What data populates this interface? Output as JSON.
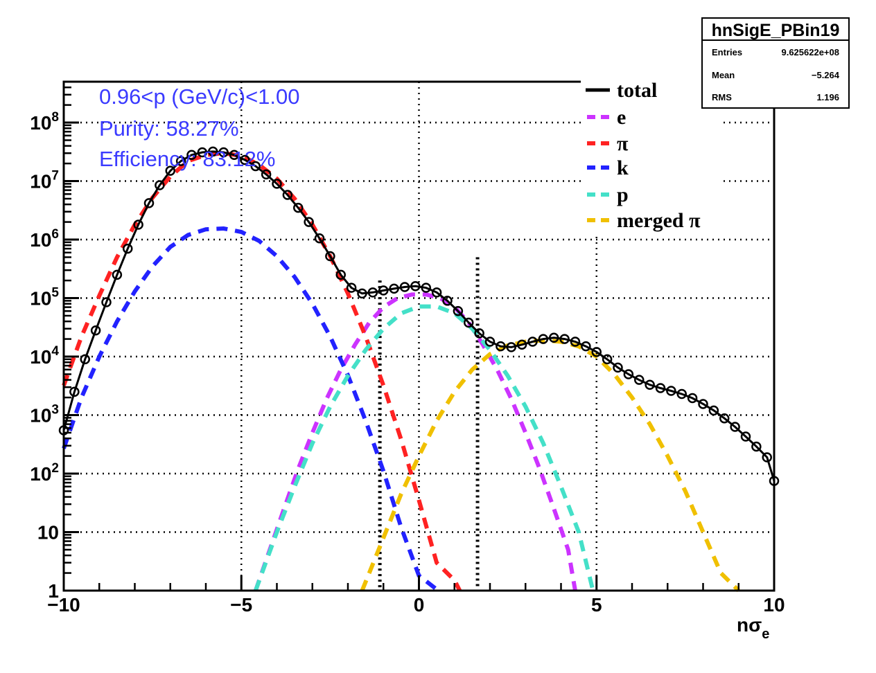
{
  "chart_data": {
    "type": "line",
    "xlabel": "nσ",
    "xlabel_subscript": "e",
    "xlim": [
      -10,
      10
    ],
    "ylim": [
      1,
      500000000
    ],
    "y_scale": "log",
    "grid": true,
    "x_ticks": [
      {
        "value": -10,
        "label": "−10"
      },
      {
        "value": -5,
        "label": "−5"
      },
      {
        "value": 0,
        "label": "0"
      },
      {
        "value": 5,
        "label": "5"
      },
      {
        "value": 10,
        "label": "10"
      }
    ],
    "y_ticks": [
      {
        "value": 1,
        "base": "1",
        "exp": ""
      },
      {
        "value": 10,
        "base": "10",
        "exp": ""
      },
      {
        "value": 100,
        "base": "10",
        "exp": "2"
      },
      {
        "value": 1000,
        "base": "10",
        "exp": "3"
      },
      {
        "value": 10000,
        "base": "10",
        "exp": "4"
      },
      {
        "value": 100000,
        "base": "10",
        "exp": "5"
      },
      {
        "value": 1000000,
        "base": "10",
        "exp": "6"
      },
      {
        "value": 10000000,
        "base": "10",
        "exp": "7"
      },
      {
        "value": 100000000,
        "base": "10",
        "exp": "8"
      }
    ],
    "cut_lines": [
      {
        "x": -1.1,
        "y_top": 200000
      },
      {
        "x": 1.65,
        "y_top": 500000
      }
    ],
    "annotations": [
      "0.96<p (GeV/c)<1.00",
      "Purity: 58.27%",
      "Efficiency: 83.12%"
    ],
    "legend_position": "top-right",
    "series": [
      {
        "name": "total",
        "style": "markers",
        "color": "#000000",
        "x": [
          -10.0,
          -9.7,
          -9.4,
          -9.1,
          -8.8,
          -8.5,
          -8.2,
          -7.9,
          -7.6,
          -7.3,
          -7.0,
          -6.7,
          -6.4,
          -6.1,
          -5.8,
          -5.5,
          -5.2,
          -4.9,
          -4.6,
          -4.3,
          -4.0,
          -3.7,
          -3.4,
          -3.1,
          -2.8,
          -2.5,
          -2.2,
          -1.9,
          -1.6,
          -1.3,
          -1.0,
          -0.7,
          -0.4,
          -0.1,
          0.2,
          0.5,
          0.8,
          1.1,
          1.4,
          1.7,
          2.0,
          2.3,
          2.6,
          2.9,
          3.2,
          3.5,
          3.8,
          4.1,
          4.4,
          4.7,
          5.0,
          5.3,
          5.6,
          5.9,
          6.2,
          6.5,
          6.8,
          7.1,
          7.4,
          7.7,
          8.0,
          8.3,
          8.6,
          8.9,
          9.2,
          9.5,
          9.8,
          10.0
        ],
        "y": [
          550,
          2500,
          9000,
          28000,
          85000,
          250000,
          700000,
          1800000,
          4200000,
          8500000,
          15000000,
          22000000,
          28000000,
          31000000,
          32000000,
          31000000,
          28000000,
          23000000,
          18000000,
          13000000,
          9000000,
          5800000,
          3500000,
          2000000,
          1050000,
          520000,
          250000,
          150000,
          120000,
          125000,
          135000,
          145000,
          155000,
          160000,
          150000,
          125000,
          90000,
          60000,
          38000,
          25000,
          18000,
          15000,
          14500,
          16000,
          18000,
          20000,
          21000,
          20000,
          18000,
          15000,
          12000,
          9000,
          6500,
          5000,
          4000,
          3300,
          2900,
          2600,
          2300,
          1950,
          1550,
          1200,
          880,
          630,
          430,
          290,
          190,
          75
        ]
      },
      {
        "name": "e",
        "style": "dashed",
        "color": "#cc33ff",
        "x": [
          -4.6,
          -4.2,
          -3.8,
          -3.4,
          -3.0,
          -2.6,
          -2.2,
          -1.8,
          -1.4,
          -1.0,
          -0.6,
          -0.2,
          0.2,
          0.6,
          1.0,
          1.4,
          1.8,
          2.2,
          2.6,
          3.0,
          3.4,
          3.8,
          4.2,
          4.4
        ],
        "y": [
          1,
          5,
          25,
          120,
          500,
          1900,
          6000,
          16000,
          38000,
          70000,
          100000,
          115000,
          115000,
          100000,
          70000,
          38000,
          16000,
          6000,
          1900,
          500,
          120,
          25,
          5,
          1
        ]
      },
      {
        "name": "π",
        "style": "dashed",
        "color": "#ff2222",
        "x": [
          -10.0,
          -9.5,
          -9.0,
          -8.5,
          -8.0,
          -7.5,
          -7.0,
          -6.5,
          -6.0,
          -5.5,
          -5.0,
          -4.5,
          -4.0,
          -3.5,
          -3.0,
          -2.5,
          -2.0,
          -1.5,
          -1.0,
          -0.5,
          0.0,
          0.5,
          1.0,
          1.15
        ],
        "y": [
          3200,
          22000,
          110000,
          500000,
          1800000,
          5200000,
          12000000,
          22000000,
          28000000,
          30000000,
          27000000,
          19000000,
          11000000,
          5000000,
          1800000,
          520000,
          120000,
          22000,
          3200,
          380,
          35,
          3,
          1.5,
          1
        ]
      },
      {
        "name": "k",
        "style": "dashed",
        "color": "#2222ff",
        "x": [
          -10.0,
          -9.5,
          -9.0,
          -8.5,
          -8.0,
          -7.5,
          -7.0,
          -6.5,
          -6.0,
          -5.5,
          -5.0,
          -4.5,
          -4.0,
          -3.5,
          -3.0,
          -2.5,
          -2.0,
          -1.5,
          -1.0,
          -0.5,
          0.0,
          0.5,
          0.6
        ],
        "y": [
          270,
          2000,
          10000,
          40000,
          130000,
          350000,
          750000,
          1200000,
          1500000,
          1550000,
          1350000,
          950000,
          520000,
          230000,
          80000,
          22000,
          4800,
          800,
          110,
          12,
          1.8,
          1.05,
          1
        ]
      },
      {
        "name": "p",
        "style": "dashed",
        "color": "#44e0c8",
        "x": [
          -4.6,
          -4.0,
          -3.5,
          -3.0,
          -2.5,
          -2.0,
          -1.5,
          -1.0,
          -0.5,
          0.0,
          0.5,
          1.0,
          1.5,
          2.0,
          2.5,
          3.0,
          3.5,
          4.0,
          4.5,
          4.9
        ],
        "y": [
          1,
          10,
          60,
          330,
          1400,
          4700,
          13000,
          30000,
          55000,
          72000,
          72000,
          55000,
          30000,
          13000,
          4700,
          1400,
          330,
          60,
          10,
          1
        ]
      },
      {
        "name": "merged π",
        "style": "dashed",
        "color": "#f0c000",
        "x": [
          -1.6,
          -1.0,
          -0.5,
          0.0,
          0.5,
          1.0,
          1.5,
          2.0,
          2.5,
          3.0,
          3.5,
          4.0,
          4.5,
          5.0,
          5.5,
          6.0,
          6.5,
          7.0,
          7.5,
          8.0,
          8.5,
          9.0
        ],
        "y": [
          1,
          8,
          45,
          200,
          800,
          2500,
          6000,
          11000,
          15500,
          18000,
          19000,
          18000,
          15000,
          10000,
          5000,
          2000,
          700,
          200,
          50,
          10,
          2,
          1
        ]
      }
    ]
  },
  "stats_box": {
    "title": "hnSigE_PBin19",
    "rows": [
      {
        "label": "Entries",
        "value": "9.625622e+08"
      },
      {
        "label": "Mean",
        "value": "−5.264"
      },
      {
        "label": "RMS",
        "value": "1.196"
      }
    ]
  }
}
